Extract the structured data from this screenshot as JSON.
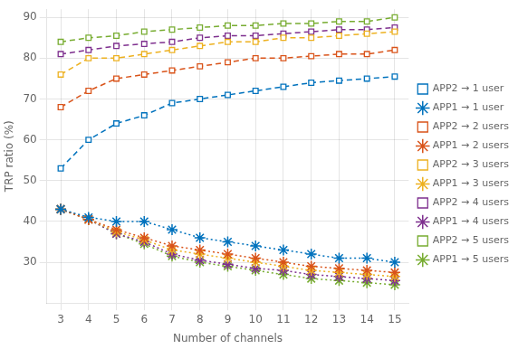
{
  "chart_data": {
    "type": "line",
    "x": [
      3,
      4,
      5,
      6,
      7,
      8,
      9,
      10,
      11,
      12,
      13,
      14,
      15
    ],
    "series": [
      {
        "name": "APP2 → 1 user",
        "color": "#0072BD",
        "marker": "square",
        "line_style": "dashed",
        "values": [
          53,
          60,
          64,
          66,
          69,
          70,
          71,
          72,
          73,
          74,
          74.5,
          75,
          75.5
        ]
      },
      {
        "name": "APP1 → 1 user",
        "color": "#0072BD",
        "marker": "star",
        "line_style": "dotted",
        "values": [
          43,
          41,
          40,
          40,
          38,
          36,
          35,
          34,
          33,
          32,
          31,
          31,
          30
        ]
      },
      {
        "name": "APP2 → 2 users",
        "color": "#D95319",
        "marker": "square",
        "line_style": "dashed",
        "values": [
          68,
          72,
          75,
          76,
          77,
          78,
          79,
          80,
          80,
          80.5,
          81,
          81,
          82
        ]
      },
      {
        "name": "APP1 → 2 users",
        "color": "#D95319",
        "marker": "star",
        "line_style": "dotted",
        "values": [
          43,
          40.5,
          38,
          36,
          34,
          33,
          32,
          31,
          30,
          29,
          28.5,
          28,
          27.5
        ]
      },
      {
        "name": "APP2 → 3 users",
        "color": "#EDB120",
        "marker": "square",
        "line_style": "dashed",
        "values": [
          76,
          80,
          80,
          81,
          82,
          83,
          84,
          84,
          85,
          85,
          85.5,
          86,
          86.5
        ]
      },
      {
        "name": "APP1 → 3 users",
        "color": "#EDB120",
        "marker": "star",
        "line_style": "dotted",
        "values": [
          43,
          40.5,
          37.5,
          35.5,
          33,
          32,
          31,
          30,
          29,
          28,
          27.5,
          27,
          26.5
        ]
      },
      {
        "name": "APP2 → 4 users",
        "color": "#7E2F8E",
        "marker": "square",
        "line_style": "dashed",
        "values": [
          81,
          82,
          83,
          83.5,
          84,
          85,
          85.5,
          85.5,
          86,
          86.5,
          87,
          87,
          87.5
        ]
      },
      {
        "name": "APP1 → 4 users",
        "color": "#7E2F8E",
        "marker": "star",
        "line_style": "dotted",
        "values": [
          43,
          40.5,
          37,
          35,
          32,
          30.5,
          29.5,
          28.5,
          28,
          27,
          26.5,
          26,
          25.5
        ]
      },
      {
        "name": "APP2 → 5 users",
        "color": "#77AC30",
        "marker": "square",
        "line_style": "dashed",
        "values": [
          84,
          85,
          85.5,
          86.5,
          87,
          87.5,
          88,
          88,
          88.5,
          88.5,
          89,
          89,
          90
        ]
      },
      {
        "name": "APP1 → 5 users",
        "color": "#77AC30",
        "marker": "star",
        "line_style": "dotted",
        "values": [
          43,
          40.5,
          37,
          34.5,
          31.5,
          30,
          29,
          28,
          27,
          26,
          25.5,
          25,
          24.5
        ]
      }
    ],
    "xlabel": "Number of channels",
    "ylabel": "TRP ratio (%)",
    "xlim": [
      2.5,
      15.5
    ],
    "xticks": [
      3,
      4,
      5,
      6,
      7,
      8,
      9,
      10,
      11,
      12,
      13,
      14,
      15
    ],
    "ylim": [
      20,
      92
    ],
    "yticks": [
      30,
      40,
      50,
      60,
      70,
      80,
      90
    ],
    "grid": true,
    "legend": "right"
  }
}
